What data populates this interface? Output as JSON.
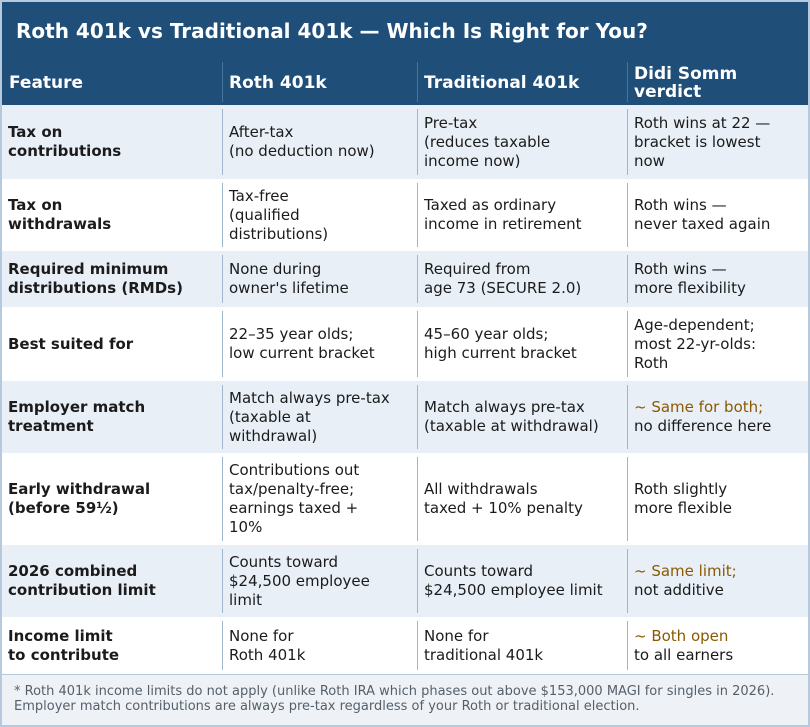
{
  "title": "Roth 401k vs Traditional 401k — Which Is Right for You?",
  "headers": {
    "feature": "Feature",
    "roth": "Roth 401k",
    "trad": "Traditional 401k",
    "verdict": "Didi Somm\nverdict"
  },
  "rows": [
    {
      "feature": "Tax on\ncontributions",
      "roth": "After-tax\n(no deduction now)",
      "trad": "Pre-tax\n(reduces taxable\nincome now)",
      "verdict_lead": "",
      "verdict": "Roth wins at 22 —\nbracket is lowest\nnow"
    },
    {
      "feature": "Tax on\nwithdrawals",
      "roth": "Tax-free\n(qualified\ndistributions)",
      "trad": "Taxed as ordinary\nincome in retirement",
      "verdict_lead": "",
      "verdict": "Roth wins —\nnever taxed again"
    },
    {
      "feature": "Required minimum\ndistributions (RMDs)",
      "roth": "None during\nowner's lifetime",
      "trad": "Required from\nage 73 (SECURE 2.0)",
      "verdict_lead": "",
      "verdict": "Roth wins —\nmore flexibility"
    },
    {
      "feature": "Best suited for",
      "roth": "22–35 year olds;\nlow current bracket",
      "trad": "45–60 year olds;\nhigh current bracket",
      "verdict_lead": "",
      "verdict": "Age-dependent;\nmost 22-yr-olds:\nRoth"
    },
    {
      "feature": "Employer match\ntreatment",
      "roth": "Match always pre-tax\n(taxable at\nwithdrawal)",
      "trad": "Match always pre-tax\n(taxable at withdrawal)",
      "verdict_lead": "~ Same for both;",
      "verdict": "no difference here"
    },
    {
      "feature": "Early withdrawal\n(before 59½)",
      "roth": "Contributions out\ntax/penalty-free;\nearnings taxed +\n10%",
      "trad": "All withdrawals\ntaxed + 10% penalty",
      "verdict_lead": "",
      "verdict": "Roth slightly\nmore flexible"
    },
    {
      "feature": "2026 combined\ncontribution limit",
      "roth": "Counts toward\n$24,500 employee\nlimit",
      "trad": "Counts toward\n$24,500 employee limit",
      "verdict_lead": "~ Same limit;",
      "verdict": "not additive"
    },
    {
      "feature": "Income limit\nto contribute",
      "roth": "None for\nRoth 401k",
      "trad": "None for\ntraditional 401k",
      "verdict_lead": "~ Both open",
      "verdict": "to all earners"
    }
  ],
  "footnote": "* Roth 401k income limits do not apply (unlike Roth IRA which phases out above $153,000 MAGI for singles in 2026). Employer match contributions are always pre-tax regardless of your Roth or traditional election.",
  "colors": {
    "header_bg": "#1f4e79",
    "alt_row_bg": "#e8eff7",
    "tilde_text": "#8a5a00",
    "footnote_text": "#555f6a"
  }
}
